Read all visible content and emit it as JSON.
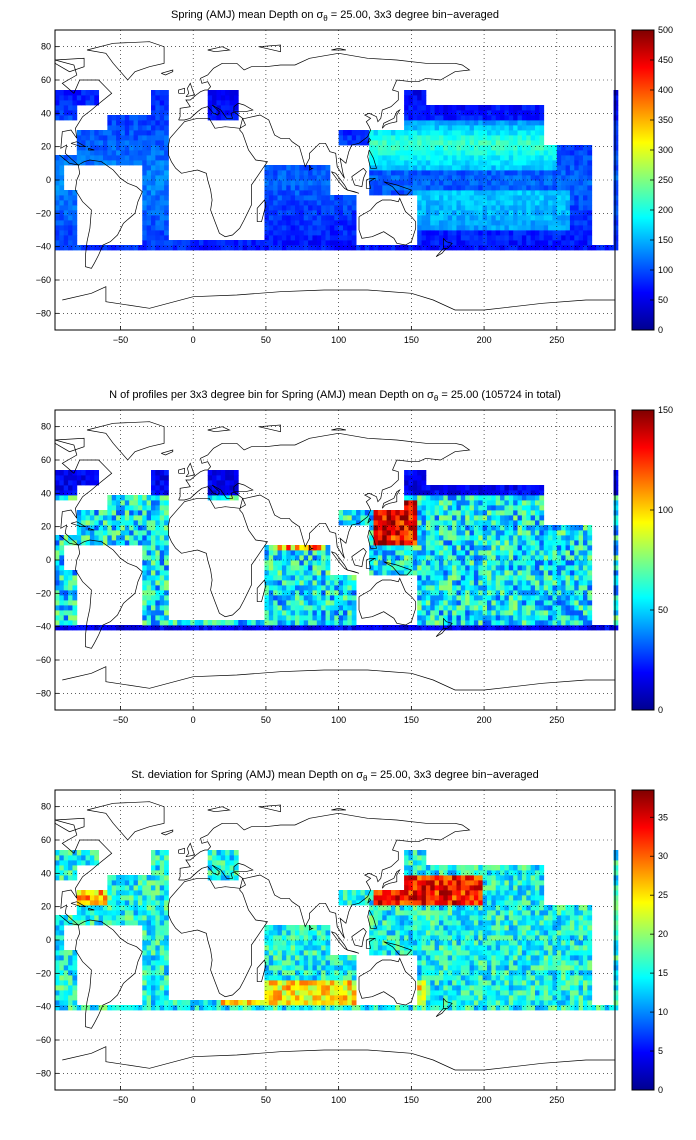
{
  "chart_data": [
    {
      "type": "heatmap",
      "title_prefix": "Spring (AMJ) mean Depth on ",
      "title_symbol": "σ",
      "title_subscript": "θ",
      "title_suffix": " = 25.00, 3x3 degree bin−averaged",
      "x_ticks": [
        "−50",
        "0",
        "50",
        "100",
        "150",
        "200",
        "250"
      ],
      "y_ticks": [
        "80",
        "60",
        "40",
        "20",
        "0",
        "−20",
        "−40",
        "−60",
        "−80"
      ],
      "xlim": [
        -95,
        290
      ],
      "ylim": [
        -90,
        90
      ],
      "grid": true,
      "colormap": "jet",
      "colorbar_ticks": [
        "500",
        "450",
        "400",
        "350",
        "300",
        "250",
        "200",
        "150",
        "100",
        "50",
        "0"
      ],
      "clim": [
        0,
        500
      ]
    },
    {
      "type": "heatmap",
      "title_prefix": "N of profiles per 3x3 degree bin for Spring (AMJ) mean Depth on ",
      "title_symbol": "σ",
      "title_subscript": "θ",
      "title_suffix": " = 25.00 (105724 in total)",
      "x_ticks": [
        "−50",
        "0",
        "50",
        "100",
        "150",
        "200",
        "250"
      ],
      "y_ticks": [
        "80",
        "60",
        "40",
        "20",
        "0",
        "−20",
        "−40",
        "−60",
        "−80"
      ],
      "xlim": [
        -95,
        290
      ],
      "ylim": [
        -90,
        90
      ],
      "grid": true,
      "colormap": "jet",
      "colorbar_ticks": [
        "150",
        "100",
        "50",
        "0"
      ],
      "clim": [
        0,
        150
      ]
    },
    {
      "type": "heatmap",
      "title_prefix": "St. deviation for Spring (AMJ) mean Depth on ",
      "title_symbol": "σ",
      "title_subscript": "θ",
      "title_suffix": " = 25.00, 3x3 degree bin−averaged",
      "x_ticks": [
        "−50",
        "0",
        "50",
        "100",
        "150",
        "200",
        "250"
      ],
      "y_ticks": [
        "80",
        "60",
        "40",
        "20",
        "0",
        "−20",
        "−40",
        "−60",
        "−80"
      ],
      "xlim": [
        -95,
        290
      ],
      "ylim": [
        -90,
        90
      ],
      "grid": true,
      "colormap": "jet",
      "colorbar_ticks": [
        "35",
        "30",
        "25",
        "20",
        "15",
        "10",
        "5",
        "0"
      ],
      "clim": [
        0,
        38.5
      ]
    }
  ]
}
